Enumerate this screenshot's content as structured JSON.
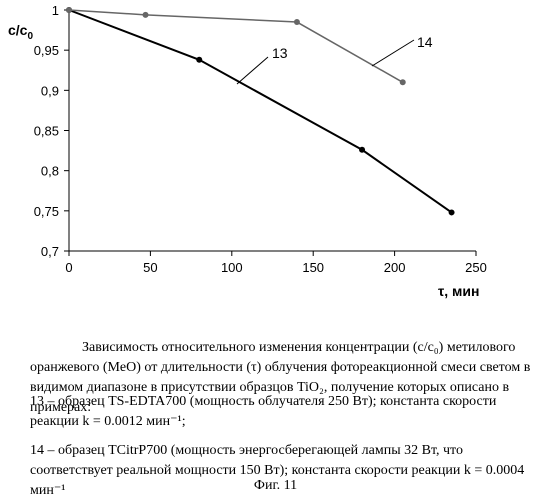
{
  "chart_data": {
    "type": "line",
    "ylabel": "c/c",
    "ylabel_sub": "0",
    "xlabel": "τ, мин",
    "xlim": [
      0,
      250
    ],
    "ylim": [
      0.7,
      1.0
    ],
    "x_ticks": [
      0,
      50,
      100,
      150,
      200,
      250
    ],
    "y_ticks": [
      0.7,
      0.75,
      0.8,
      0.85,
      0.9,
      0.95,
      1.0
    ],
    "x_tick_labels": [
      "0",
      "50",
      "100",
      "150",
      "200",
      "250"
    ],
    "y_tick_labels": [
      "0,7",
      "0,75",
      "0,8",
      "0,85",
      "0,9",
      "0,95",
      "1"
    ],
    "grid": false,
    "series": [
      {
        "name": "13",
        "color": "#000000",
        "x": [
          0,
          80,
          180,
          235
        ],
        "y": [
          1.0,
          0.938,
          0.826,
          0.748
        ]
      },
      {
        "name": "14",
        "color": "#666666",
        "x": [
          0,
          47,
          140,
          205
        ],
        "y": [
          1.0,
          0.994,
          0.985,
          0.91
        ]
      }
    ]
  },
  "caption": {
    "paragraph1": "Зависимость относительного изменения концентрации (c/c₀) метилового оранжевого (MeO) от длительности (τ) облучения фотореакционной смеси светом в видимом диапазоне в присутствии образцов TiO₂, получение которых описано в примерах:",
    "item13": "13 – образец TS-EDTA700 (мощность облучателя 250 Вт);  константа скорости реакции k = 0.0012 мин⁻¹;",
    "item14": "14 – образец TCitrP700 (мощность энергосберегающей лампы 32 Вт, что соответствует реальной мощности 150 Вт);  константа скорости реакции k = 0.0004 мин⁻¹",
    "figure": "Фиг. 11"
  }
}
